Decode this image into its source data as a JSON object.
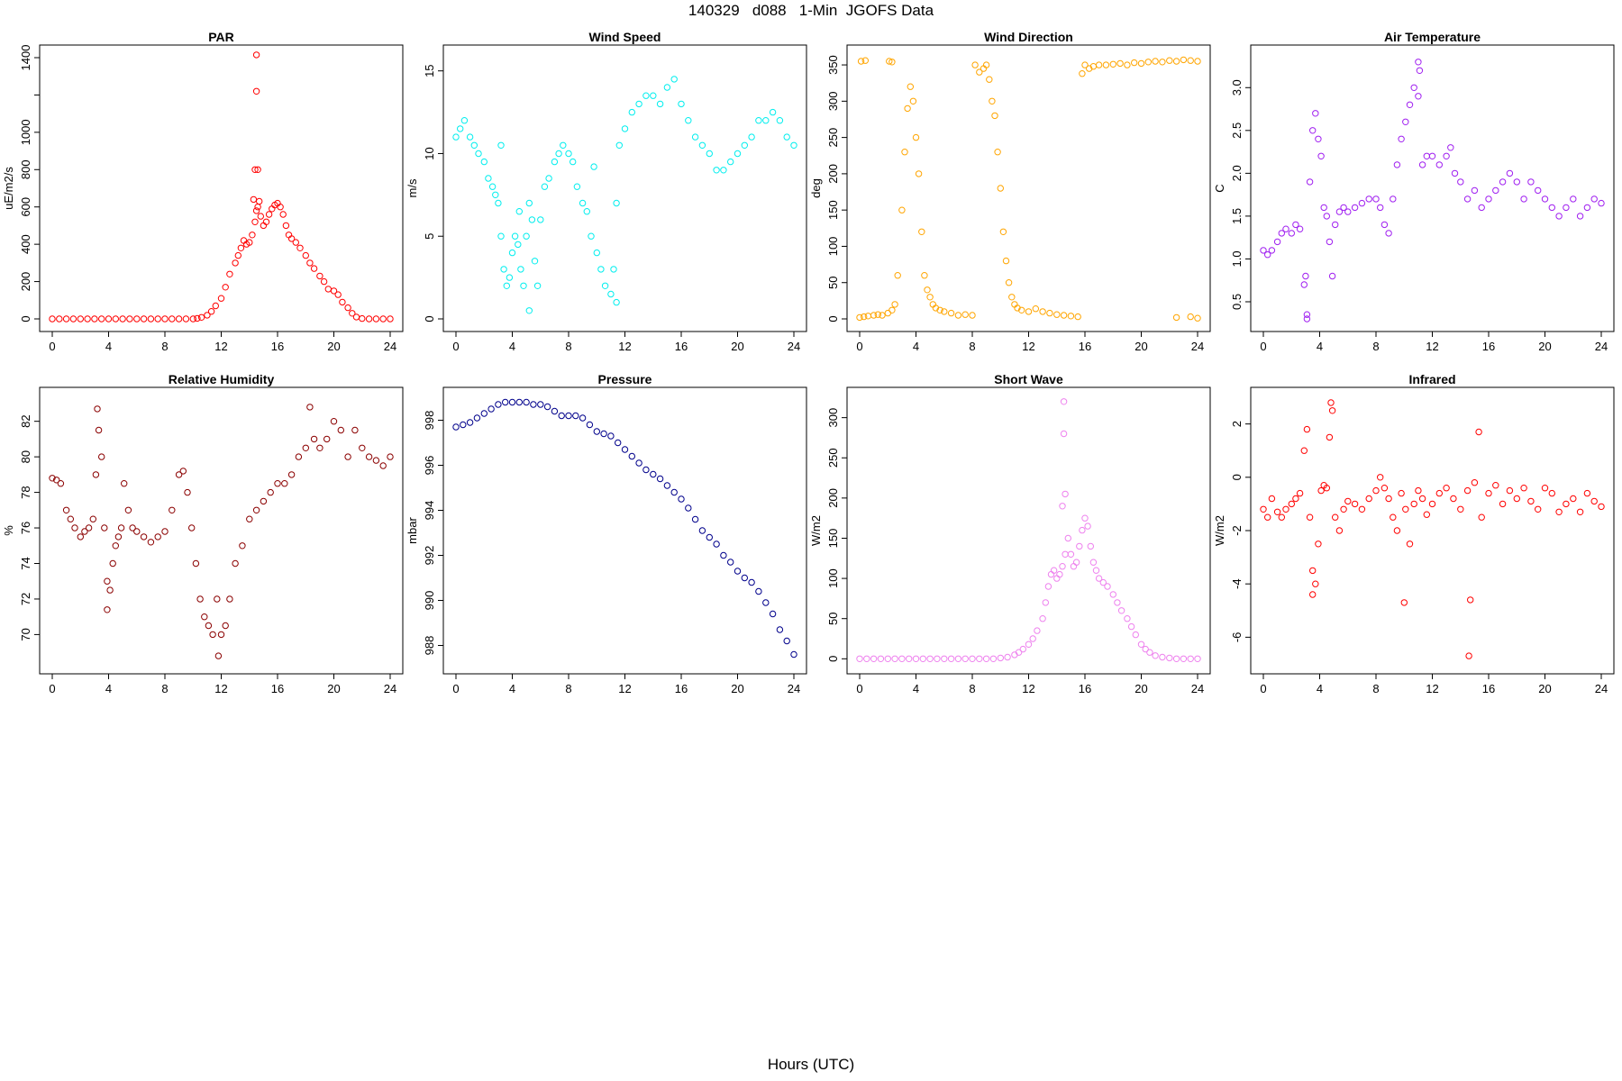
{
  "page": {
    "title": "140329   d088   1-Min  JGOFS Data",
    "x_caption": "Hours (UTC)"
  },
  "chart_data": [
    {
      "type": "scatter",
      "title": "PAR",
      "ylabel": "uE/m2/s",
      "color": "#ff0000",
      "xlim": [
        0,
        24
      ],
      "ylim": [
        0,
        1400
      ],
      "xticks": [
        0,
        4,
        8,
        12,
        16,
        20,
        24
      ],
      "yticks": [
        0,
        200,
        400,
        600,
        800,
        1000,
        1200,
        1400
      ],
      "ytick_labels": [
        "0",
        "200",
        "400",
        "600",
        "800",
        "1000",
        "",
        "1400"
      ],
      "x": [
        0,
        0.5,
        1,
        1.5,
        2,
        2.5,
        3,
        3.5,
        4,
        4.5,
        5,
        5.5,
        6,
        6.5,
        7,
        7.5,
        8,
        8.5,
        9,
        9.5,
        10,
        10.3,
        10.6,
        11,
        11.3,
        11.6,
        12,
        12.3,
        12.6,
        13,
        13.2,
        13.4,
        13.6,
        13.8,
        14,
        14.2,
        14.4,
        14.5,
        14.6,
        14.8,
        15,
        15.2,
        15.4,
        15.6,
        15.8,
        16,
        16.2,
        16.4,
        16.6,
        16.8,
        17,
        17.3,
        17.6,
        18,
        18.3,
        18.6,
        19,
        19.3,
        19.6,
        20,
        20.3,
        20.6,
        21,
        21.3,
        21.6,
        22,
        22.5,
        23,
        23.5,
        24,
        14.5,
        14.5,
        14.4,
        14.6,
        14.3,
        14.7
      ],
      "y": [
        0,
        0,
        0,
        0,
        0,
        0,
        0,
        0,
        0,
        0,
        0,
        0,
        0,
        0,
        0,
        0,
        0,
        0,
        0,
        0,
        0,
        3,
        8,
        20,
        40,
        70,
        110,
        170,
        240,
        300,
        340,
        380,
        420,
        400,
        410,
        450,
        520,
        580,
        600,
        550,
        500,
        520,
        560,
        590,
        610,
        620,
        600,
        560,
        500,
        450,
        430,
        410,
        380,
        340,
        300,
        270,
        230,
        200,
        160,
        150,
        130,
        90,
        60,
        30,
        10,
        2,
        0,
        0,
        0,
        0,
        1415,
        1220,
        800,
        800,
        640,
        630
      ]
    },
    {
      "type": "scatter",
      "title": "Wind Speed",
      "ylabel": "m/s",
      "color": "#00eeee",
      "xlim": [
        0,
        24
      ],
      "ylim": [
        0,
        15.8
      ],
      "xticks": [
        0,
        4,
        8,
        12,
        16,
        20,
        24
      ],
      "yticks": [
        0,
        5,
        10,
        15
      ],
      "ytick_labels": [
        "0",
        "5",
        "10",
        "15"
      ],
      "x": [
        0,
        0.3,
        0.6,
        1,
        1.3,
        1.6,
        2,
        2.3,
        2.6,
        3,
        3.2,
        3.4,
        3.6,
        3.8,
        4,
        4.2,
        4.4,
        4.6,
        4.8,
        5,
        5.2,
        5.4,
        5.6,
        5.8,
        6,
        6.3,
        6.6,
        7,
        7.3,
        7.6,
        8,
        8.3,
        8.6,
        9,
        9.3,
        9.6,
        10,
        10.3,
        10.6,
        11,
        11.2,
        11.4,
        11.6,
        12,
        12.5,
        13,
        13.5,
        14,
        14.5,
        15,
        15.5,
        16,
        16.5,
        17,
        17.5,
        18,
        18.5,
        19,
        19.5,
        20,
        20.5,
        21,
        21.5,
        22,
        22.5,
        23,
        23.5,
        24,
        3.2,
        4.5,
        5.2,
        2.8,
        11.4,
        9.8
      ],
      "y": [
        11,
        11.5,
        12,
        11,
        10.5,
        10,
        9.5,
        8.5,
        8,
        7,
        5,
        3,
        2,
        2.5,
        4,
        5,
        4.5,
        3,
        2,
        5,
        7,
        6,
        3.5,
        2,
        6,
        8,
        8.5,
        9.5,
        10,
        10.5,
        10,
        9.5,
        8,
        7,
        6.5,
        5,
        4,
        3,
        2,
        1.5,
        3,
        7,
        10.5,
        11.5,
        12.5,
        13,
        13.5,
        13.5,
        13,
        14,
        14.5,
        13,
        12,
        11,
        10.5,
        10,
        9,
        9,
        9.5,
        10,
        10.5,
        11,
        12,
        12,
        12.5,
        12,
        11,
        10.5,
        10.5,
        6.5,
        0.5,
        7.5,
        1,
        9.2
      ]
    },
    {
      "type": "scatter",
      "title": "Wind Direction",
      "ylabel": "deg",
      "color": "#ffa500",
      "xlim": [
        0,
        24
      ],
      "ylim": [
        0,
        360
      ],
      "xticks": [
        0,
        4,
        8,
        12,
        16,
        20,
        24
      ],
      "yticks": [
        0,
        50,
        100,
        150,
        200,
        250,
        300,
        350
      ],
      "ytick_labels": [
        "0",
        "50",
        "100",
        "150",
        "200",
        "250",
        "300",
        "350"
      ],
      "x": [
        0,
        0.3,
        0.6,
        1,
        1.3,
        1.6,
        2,
        2.3,
        0.1,
        0.4,
        2.1,
        2.3,
        2.5,
        2.7,
        3,
        3.2,
        3.4,
        3.6,
        3.8,
        4,
        4.2,
        4.4,
        4.6,
        4.8,
        5,
        5.2,
        5.4,
        5.7,
        6,
        6.5,
        7,
        7.5,
        8,
        8.2,
        8.5,
        8.8,
        9,
        9.2,
        9.4,
        9.6,
        9.8,
        10,
        10.2,
        10.4,
        10.6,
        10.8,
        11,
        11.2,
        11.5,
        12,
        12.5,
        13,
        13.5,
        14,
        14.5,
        15,
        15.5,
        16,
        16.3,
        16.6,
        17,
        17.5,
        18,
        18.5,
        19,
        19.5,
        20,
        20.5,
        21,
        21.5,
        22,
        22.5,
        23,
        23.5,
        24,
        15.8,
        22.5,
        23.5,
        24
      ],
      "y": [
        2,
        3,
        4,
        5,
        6,
        5,
        8,
        12,
        355,
        356,
        355,
        354,
        20,
        60,
        150,
        230,
        290,
        320,
        300,
        250,
        200,
        120,
        60,
        40,
        30,
        20,
        15,
        12,
        10,
        8,
        5,
        6,
        5,
        350,
        340,
        345,
        350,
        330,
        300,
        280,
        230,
        180,
        120,
        80,
        50,
        30,
        20,
        15,
        12,
        10,
        14,
        10,
        8,
        6,
        5,
        4,
        3,
        350,
        345,
        348,
        350,
        350,
        351,
        352,
        350,
        353,
        352,
        354,
        355,
        354,
        356,
        355,
        357,
        356,
        355,
        338,
        2,
        3,
        1
      ]
    },
    {
      "type": "scatter",
      "title": "Air Temperature",
      "ylabel": "C",
      "color": "#a020f0",
      "xlim": [
        0,
        24
      ],
      "ylim": [
        0.3,
        3.35
      ],
      "xticks": [
        0,
        4,
        8,
        12,
        16,
        20,
        24
      ],
      "yticks": [
        0.5,
        1.0,
        1.5,
        2.0,
        2.5,
        3.0
      ],
      "ytick_labels": [
        "0.5",
        "1.0",
        "1.5",
        "2.0",
        "2.5",
        "3.0"
      ],
      "x": [
        0,
        0.3,
        0.6,
        1,
        1.3,
        1.6,
        2,
        2.3,
        2.6,
        2.9,
        3.1,
        3.3,
        3.5,
        3.7,
        3.9,
        4.1,
        4.3,
        4.5,
        4.7,
        4.9,
        5.1,
        5.4,
        5.7,
        6,
        6.5,
        7,
        7.5,
        8,
        8.3,
        8.6,
        8.9,
        9.2,
        9.5,
        9.8,
        10.1,
        10.4,
        10.7,
        11,
        11.3,
        11.6,
        12,
        12.5,
        13,
        13.3,
        13.6,
        14,
        14.5,
        15,
        15.5,
        16,
        16.5,
        17,
        17.5,
        18,
        18.5,
        19,
        19.5,
        20,
        20.5,
        21,
        21.5,
        22,
        22.5,
        23,
        23.5,
        24,
        3.0,
        3.1,
        11.0,
        11.1
      ],
      "y": [
        1.1,
        1.05,
        1.1,
        1.2,
        1.3,
        1.35,
        1.3,
        1.4,
        1.35,
        0.7,
        0.35,
        1.9,
        2.5,
        2.7,
        2.4,
        2.2,
        1.6,
        1.5,
        1.2,
        0.8,
        1.4,
        1.55,
        1.6,
        1.55,
        1.6,
        1.65,
        1.7,
        1.7,
        1.6,
        1.4,
        1.3,
        1.7,
        2.1,
        2.4,
        2.6,
        2.8,
        3.0,
        2.9,
        2.1,
        2.2,
        2.2,
        2.1,
        2.2,
        2.3,
        2.0,
        1.9,
        1.7,
        1.8,
        1.6,
        1.7,
        1.8,
        1.9,
        2.0,
        1.9,
        1.7,
        1.9,
        1.8,
        1.7,
        1.6,
        1.5,
        1.6,
        1.7,
        1.5,
        1.6,
        1.7,
        1.65,
        0.8,
        0.3,
        3.3,
        3.2
      ]
    },
    {
      "type": "scatter",
      "title": "Relative Humidity",
      "ylabel": "%",
      "color": "#8b0000",
      "xlim": [
        0,
        24
      ],
      "ylim": [
        68.5,
        83.2
      ],
      "xticks": [
        0,
        4,
        8,
        12,
        16,
        20,
        24
      ],
      "yticks": [
        70,
        72,
        74,
        76,
        78,
        80,
        82
      ],
      "ytick_labels": [
        "70",
        "72",
        "74",
        "76",
        "78",
        "80",
        "82"
      ],
      "x": [
        0,
        0.3,
        0.6,
        1,
        1.3,
        1.6,
        2,
        2.3,
        2.6,
        2.9,
        3.1,
        3.3,
        3.5,
        3.7,
        3.9,
        4.1,
        4.3,
        4.5,
        4.7,
        4.9,
        5.1,
        5.4,
        5.7,
        6,
        6.5,
        7,
        7.5,
        8,
        8.5,
        9,
        9.3,
        9.6,
        9.9,
        10.2,
        10.5,
        10.8,
        11.1,
        11.4,
        11.7,
        12,
        12.3,
        12.6,
        13,
        13.5,
        14,
        14.5,
        15,
        15.5,
        16,
        16.5,
        17,
        17.5,
        18,
        18.3,
        18.6,
        19,
        19.5,
        20,
        20.5,
        21,
        21.5,
        22,
        22.5,
        23,
        23.5,
        24,
        3.2,
        3.9,
        11.8
      ],
      "y": [
        78.8,
        78.7,
        78.5,
        77,
        76.5,
        76,
        75.5,
        75.8,
        76,
        76.5,
        79,
        81.5,
        80,
        76,
        73,
        72.5,
        74,
        75,
        75.5,
        76,
        78.5,
        77,
        76,
        75.8,
        75.5,
        75.2,
        75.5,
        75.8,
        77,
        79,
        79.2,
        78,
        76,
        74,
        72,
        71,
        70.5,
        70,
        72,
        70,
        70.5,
        72,
        74,
        75,
        76.5,
        77,
        77.5,
        78,
        78.5,
        78.5,
        79,
        80,
        80.5,
        82.8,
        81,
        80.5,
        81,
        82,
        81.5,
        80,
        81.5,
        80.5,
        80,
        79.8,
        79.5,
        80,
        82.7,
        71.4,
        68.8
      ]
    },
    {
      "type": "scatter",
      "title": "Pressure",
      "ylabel": "mbar",
      "color": "#00008b",
      "xlim": [
        0,
        24
      ],
      "ylim": [
        987.3,
        998.9
      ],
      "xticks": [
        0,
        4,
        8,
        12,
        16,
        20,
        24
      ],
      "yticks": [
        988,
        990,
        992,
        994,
        996,
        998
      ],
      "ytick_labels": [
        "988",
        "990",
        "992",
        "994",
        "996",
        "998"
      ],
      "x": [
        0,
        0.5,
        1,
        1.5,
        2,
        2.5,
        3,
        3.5,
        4,
        4.5,
        5,
        5.5,
        6,
        6.5,
        7,
        7.5,
        8,
        8.5,
        9,
        9.5,
        10,
        10.5,
        11,
        11.5,
        12,
        12.5,
        13,
        13.5,
        14,
        14.5,
        15,
        15.5,
        16,
        16.5,
        17,
        17.5,
        18,
        18.5,
        19,
        19.5,
        20,
        20.5,
        21,
        21.5,
        22,
        22.5,
        23,
        23.5,
        24
      ],
      "y": [
        997.7,
        997.8,
        997.9,
        998.1,
        998.3,
        998.5,
        998.7,
        998.8,
        998.8,
        998.8,
        998.8,
        998.7,
        998.7,
        998.6,
        998.4,
        998.2,
        998.2,
        998.2,
        998.1,
        997.8,
        997.5,
        997.4,
        997.3,
        997,
        996.7,
        996.4,
        996.1,
        995.8,
        995.6,
        995.4,
        995.1,
        994.8,
        994.5,
        994.1,
        993.6,
        993.1,
        992.8,
        992.5,
        992,
        991.7,
        991.3,
        991,
        990.8,
        990.4,
        989.9,
        989.4,
        988.7,
        988.2,
        987.6
      ]
    },
    {
      "type": "scatter",
      "title": "Short Wave",
      "ylabel": "W/m2",
      "color": "#ee82ee",
      "xlim": [
        0,
        24
      ],
      "ylim": [
        -3,
        322
      ],
      "xticks": [
        0,
        4,
        8,
        12,
        16,
        20,
        24
      ],
      "yticks": [
        0,
        50,
        100,
        150,
        200,
        250,
        300
      ],
      "ytick_labels": [
        "0",
        "50",
        "100",
        "150",
        "200",
        "250",
        "300"
      ],
      "x": [
        0,
        0.5,
        1,
        1.5,
        2,
        2.5,
        3,
        3.5,
        4,
        4.5,
        5,
        5.5,
        6,
        6.5,
        7,
        7.5,
        8,
        8.5,
        9,
        9.5,
        10,
        10.5,
        11,
        11.3,
        11.6,
        12,
        12.3,
        12.6,
        13,
        13.2,
        13.4,
        13.6,
        13.8,
        14,
        14.2,
        14.4,
        14.6,
        14.8,
        15,
        15.2,
        15.4,
        15.6,
        15.8,
        16,
        16.2,
        16.4,
        16.6,
        16.8,
        17,
        17.3,
        17.6,
        18,
        18.3,
        18.6,
        19,
        19.3,
        19.6,
        20,
        20.3,
        20.6,
        21,
        21.5,
        22,
        22.5,
        23,
        23.5,
        24,
        14.5,
        14.5,
        14.6,
        14.4
      ],
      "y": [
        0,
        0,
        0,
        0,
        0,
        0,
        0,
        0,
        0,
        0,
        0,
        0,
        0,
        0,
        0,
        0,
        0,
        0,
        0,
        0,
        1,
        2,
        5,
        8,
        12,
        18,
        25,
        35,
        50,
        70,
        90,
        105,
        110,
        100,
        105,
        115,
        130,
        150,
        130,
        115,
        120,
        140,
        160,
        175,
        165,
        140,
        120,
        110,
        100,
        95,
        90,
        80,
        70,
        60,
        50,
        40,
        30,
        18,
        12,
        8,
        4,
        2,
        1,
        0,
        0,
        0,
        0,
        320,
        280,
        205,
        190
      ]
    },
    {
      "type": "scatter",
      "title": "Infrared",
      "ylabel": "W/m2",
      "color": "#ff0000",
      "xlim": [
        0,
        24
      ],
      "ylim": [
        -6.9,
        2.9
      ],
      "xticks": [
        0,
        4,
        8,
        12,
        16,
        20,
        24
      ],
      "yticks": [
        -6,
        -4,
        -2,
        0,
        2
      ],
      "ytick_labels": [
        "-6",
        "-4",
        "-2",
        "0",
        "2"
      ],
      "x": [
        0,
        0.3,
        0.6,
        1,
        1.3,
        1.6,
        2,
        2.3,
        2.6,
        2.9,
        3.1,
        3.3,
        3.5,
        3.7,
        3.9,
        4.1,
        4.3,
        4.5,
        4.7,
        4.9,
        5.1,
        5.4,
        5.7,
        6,
        6.5,
        7,
        7.5,
        8,
        8.3,
        8.6,
        8.9,
        9.2,
        9.5,
        9.8,
        10.1,
        10.4,
        10.7,
        11,
        11.3,
        11.6,
        12,
        12.5,
        13,
        13.5,
        14,
        14.5,
        15,
        15.5,
        16,
        16.5,
        17,
        17.5,
        18,
        18.5,
        19,
        19.5,
        20,
        20.5,
        21,
        21.5,
        22,
        22.5,
        23,
        23.5,
        24,
        3.5,
        4.8,
        14.6,
        14.7,
        15.3,
        10.0
      ],
      "y": [
        -1.2,
        -1.5,
        -0.8,
        -1.3,
        -1.5,
        -1.2,
        -1.0,
        -0.8,
        -0.6,
        1.0,
        1.8,
        -1.5,
        -3.5,
        -4.0,
        -2.5,
        -0.5,
        -0.3,
        -0.4,
        1.5,
        2.5,
        -1.5,
        -2.0,
        -1.2,
        -0.9,
        -1.0,
        -1.2,
        -0.8,
        -0.5,
        0.0,
        -0.4,
        -0.8,
        -1.5,
        -2.0,
        -0.6,
        -1.2,
        -2.5,
        -1.0,
        -0.5,
        -0.8,
        -1.4,
        -1.0,
        -0.6,
        -0.4,
        -0.8,
        -1.2,
        -0.5,
        -0.2,
        -1.5,
        -0.6,
        -0.3,
        -1.0,
        -0.5,
        -0.8,
        -0.4,
        -0.9,
        -1.2,
        -0.4,
        -0.6,
        -1.3,
        -1.0,
        -0.8,
        -1.3,
        -0.6,
        -0.9,
        -1.1,
        -4.4,
        2.8,
        -6.7,
        -4.6,
        1.7,
        -4.7
      ]
    }
  ]
}
